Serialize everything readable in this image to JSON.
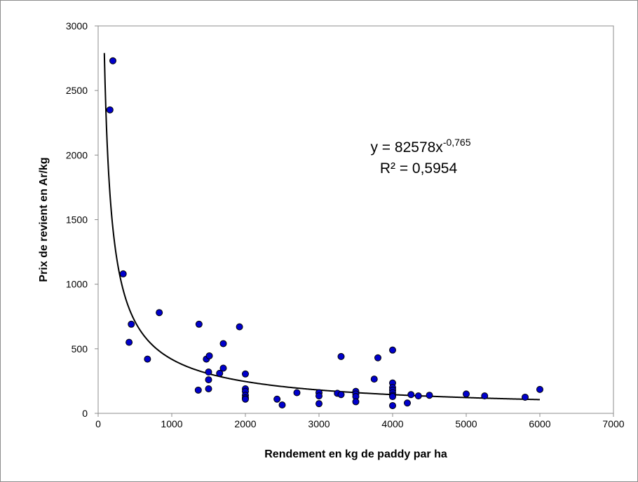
{
  "chart_data": {
    "type": "scatter",
    "xlabel": "Rendement en kg de paddy par ha",
    "ylabel": "Prix de revient en Ar/kg",
    "xlim": [
      0,
      7000
    ],
    "ylim": [
      0,
      3000
    ],
    "xticks": [
      "0",
      "1000",
      "2000",
      "3000",
      "4000",
      "5000",
      "6000",
      "7000"
    ],
    "yticks": [
      "0",
      "500",
      "1000",
      "1500",
      "2000",
      "2500",
      "3000"
    ],
    "grid": false,
    "legend": "none",
    "marker_color": "#0000cc",
    "marker_edge_color": "#000000",
    "trendline_color": "#000000",
    "series": [
      {
        "x": [
          200,
          160,
          340,
          450,
          420,
          670,
          830,
          1370,
          1470,
          1510,
          1500,
          1500,
          1500,
          1360,
          1650,
          1700,
          1700,
          1920,
          2000,
          2000,
          2000,
          2000,
          2000,
          2000,
          2430,
          2500,
          2700,
          3000,
          3000,
          3000,
          3250,
          3300,
          3300,
          3500,
          3500,
          3500,
          3500,
          3750,
          3800,
          4000,
          4000,
          4000,
          4000,
          4000,
          4000,
          4000,
          4000,
          4200,
          4250,
          4350,
          4500,
          5000,
          5250,
          5800,
          6000
        ],
        "y": [
          2730,
          2350,
          1080,
          690,
          550,
          420,
          780,
          690,
          420,
          445,
          320,
          260,
          190,
          180,
          310,
          540,
          350,
          670,
          305,
          190,
          170,
          140,
          120,
          110,
          110,
          65,
          160,
          160,
          135,
          75,
          155,
          440,
          145,
          170,
          150,
          130,
          90,
          265,
          430,
          490,
          235,
          200,
          180,
          160,
          140,
          130,
          60,
          80,
          145,
          135,
          140,
          150,
          135,
          125,
          185
        ]
      }
    ],
    "trendline": {
      "type": "power",
      "coefficient": 82578,
      "exponent": -0.765,
      "equation_main": "y = 82578x",
      "equation_exponent": "-0,765",
      "r_squared": "R² = 0,5954"
    }
  }
}
